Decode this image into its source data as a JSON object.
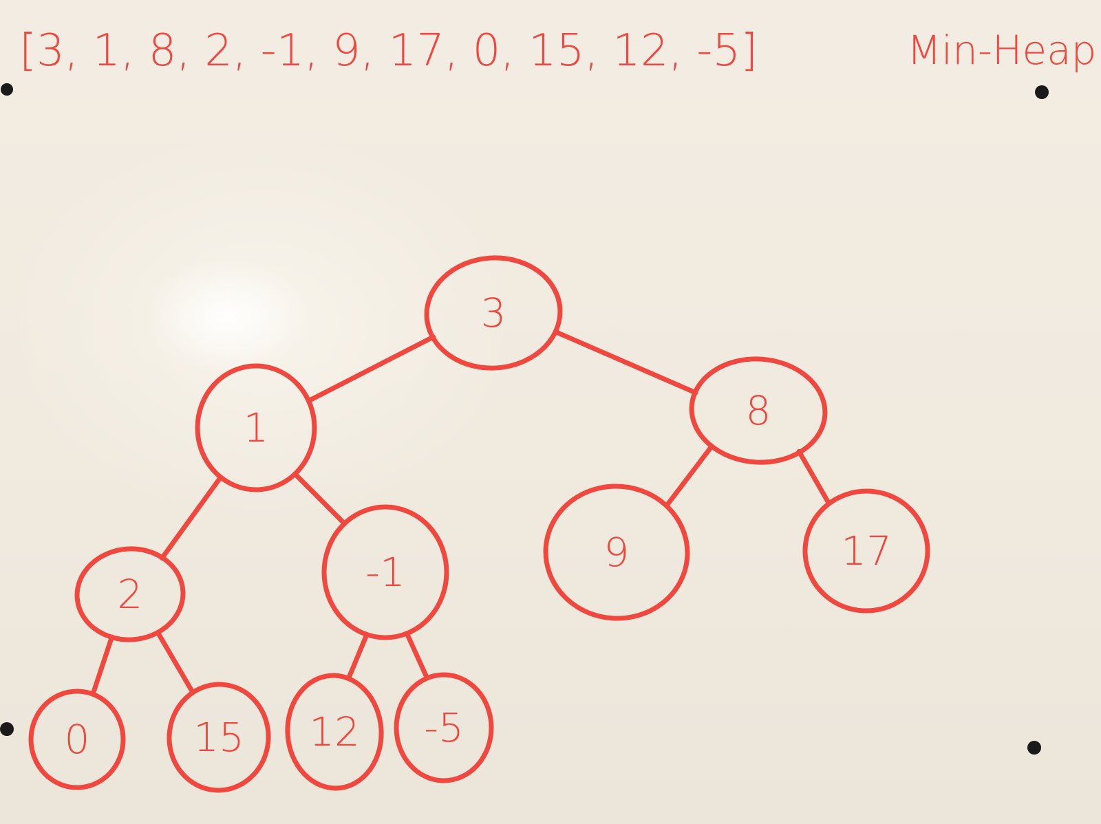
{
  "whiteboard": {
    "array_text": "[3, 1, 8, 2, -1, 9, 17, 0, 15, 12, -5]",
    "title": "Min-Heap"
  },
  "heap": {
    "nodes": [
      "3",
      "1",
      "8",
      "2",
      "-1",
      "9",
      "17",
      "0",
      "15",
      "12",
      "-5"
    ],
    "edges": [
      [
        0,
        1
      ],
      [
        0,
        2
      ],
      [
        1,
        3
      ],
      [
        1,
        4
      ],
      [
        2,
        5
      ],
      [
        2,
        6
      ],
      [
        3,
        7
      ],
      [
        3,
        8
      ],
      [
        4,
        9
      ],
      [
        4,
        10
      ]
    ]
  },
  "colors": {
    "marker": "#f0483e",
    "board": "#f0eadf"
  }
}
